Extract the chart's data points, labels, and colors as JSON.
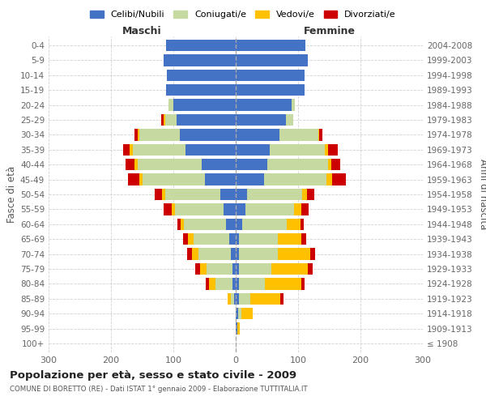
{
  "age_groups": [
    "100+",
    "95-99",
    "90-94",
    "85-89",
    "80-84",
    "75-79",
    "70-74",
    "65-69",
    "60-64",
    "55-59",
    "50-54",
    "45-49",
    "40-44",
    "35-39",
    "30-34",
    "25-29",
    "20-24",
    "15-19",
    "10-14",
    "5-9",
    "0-4"
  ],
  "birth_years": [
    "≤ 1908",
    "1909-1913",
    "1914-1918",
    "1919-1923",
    "1924-1928",
    "1929-1933",
    "1934-1938",
    "1939-1943",
    "1944-1948",
    "1949-1953",
    "1954-1958",
    "1959-1963",
    "1964-1968",
    "1969-1973",
    "1974-1978",
    "1979-1983",
    "1984-1988",
    "1989-1993",
    "1994-1998",
    "1999-2003",
    "2004-2008"
  ],
  "maschi": {
    "celibi": [
      0,
      0,
      0,
      3,
      5,
      5,
      8,
      10,
      15,
      20,
      25,
      50,
      55,
      80,
      90,
      95,
      100,
      112,
      110,
      115,
      112
    ],
    "coniugati": [
      0,
      0,
      0,
      5,
      28,
      42,
      52,
      58,
      68,
      78,
      88,
      100,
      102,
      85,
      65,
      18,
      8,
      0,
      0,
      0,
      0
    ],
    "vedovi": [
      0,
      0,
      0,
      5,
      10,
      10,
      10,
      8,
      5,
      5,
      5,
      5,
      5,
      5,
      2,
      2,
      0,
      0,
      0,
      0,
      0
    ],
    "divorziati": [
      0,
      0,
      0,
      0,
      5,
      8,
      8,
      8,
      5,
      12,
      12,
      18,
      15,
      10,
      5,
      5,
      0,
      0,
      0,
      0,
      0
    ]
  },
  "femmine": {
    "nubili": [
      0,
      2,
      4,
      5,
      5,
      5,
      5,
      5,
      10,
      15,
      18,
      45,
      50,
      55,
      70,
      80,
      90,
      110,
      110,
      115,
      112
    ],
    "coniugate": [
      0,
      0,
      5,
      18,
      42,
      52,
      62,
      62,
      72,
      78,
      88,
      100,
      98,
      88,
      62,
      12,
      5,
      0,
      0,
      0,
      0
    ],
    "vedove": [
      0,
      5,
      18,
      48,
      58,
      58,
      52,
      38,
      22,
      12,
      8,
      10,
      5,
      5,
      2,
      0,
      0,
      0,
      0,
      0,
      0
    ],
    "divorziate": [
      0,
      0,
      0,
      5,
      5,
      8,
      8,
      8,
      5,
      12,
      12,
      22,
      15,
      15,
      5,
      0,
      0,
      0,
      0,
      0,
      0
    ]
  },
  "colors": {
    "celibi": "#4472C4",
    "coniugati": "#C5D9A0",
    "vedovi": "#FFC000",
    "divorziati": "#CC0000"
  },
  "xlim": 300,
  "title": "Popolazione per età, sesso e stato civile - 2009",
  "subtitle": "COMUNE DI BORETTO (RE) - Dati ISTAT 1° gennaio 2009 - Elaborazione TUTTITALIA.IT",
  "xlabel_left": "Maschi",
  "xlabel_right": "Femmine",
  "ylabel_left": "Fasce di età",
  "ylabel_right": "Anni di nascita",
  "legend_labels": [
    "Celibi/Nubili",
    "Coniugati/e",
    "Vedovi/e",
    "Divorziati/e"
  ],
  "background_color": "#ffffff",
  "grid_color": "#cccccc"
}
